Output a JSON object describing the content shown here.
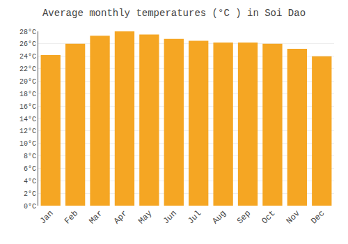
{
  "chart_data": {
    "type": "bar",
    "title": "Average monthly temperatures (°C ) in Soi Dao",
    "categories": [
      "Jan",
      "Feb",
      "Mar",
      "Apr",
      "May",
      "Jun",
      "Jul",
      "Aug",
      "Sep",
      "Oct",
      "Nov",
      "Dec"
    ],
    "values": [
      24.2,
      26.0,
      27.3,
      28.0,
      27.5,
      26.8,
      26.5,
      26.2,
      26.2,
      26.0,
      25.2,
      24.0
    ],
    "color": "#F5A623",
    "ylim": [
      0,
      28
    ],
    "yticks": [
      {
        "value": 0,
        "label": "0°C"
      },
      {
        "value": 2,
        "label": "2°C"
      },
      {
        "value": 4,
        "label": "4°C"
      },
      {
        "value": 6,
        "label": "6°C"
      },
      {
        "value": 8,
        "label": "8°C"
      },
      {
        "value": 10,
        "label": "10°C"
      },
      {
        "value": 12,
        "label": "12°C"
      },
      {
        "value": 14,
        "label": "14°C"
      },
      {
        "value": 16,
        "label": "16°C"
      },
      {
        "value": 18,
        "label": "18°C"
      },
      {
        "value": 20,
        "label": "20°C"
      },
      {
        "value": 22,
        "label": "22°C"
      },
      {
        "value": 24,
        "label": "24°C"
      },
      {
        "value": 26,
        "label": "26°C"
      },
      {
        "value": 28,
        "label": "28°C"
      }
    ],
    "grid": true
  }
}
